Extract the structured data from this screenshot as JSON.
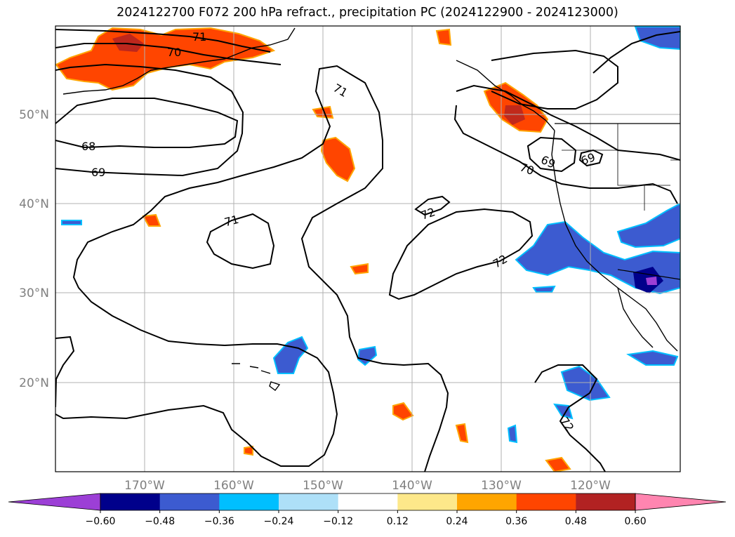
{
  "title": "2024122700 F072 200 hPa refract., precipitation PC (2024122900 - 2024123000)",
  "lat_labels": [
    "50°N",
    "40°N",
    "30°N",
    "20°N"
  ],
  "lon_labels": [
    "170°W",
    "160°W",
    "150°W",
    "140°W",
    "130°W",
    "120°W"
  ],
  "contour_labels": [
    "71",
    "70",
    "71",
    "68",
    "69",
    "71",
    "72",
    "70",
    "69",
    "69",
    "72",
    "72"
  ],
  "colorbar": {
    "colors": [
      "#9c3fd6",
      "#00008b",
      "#3c5bd0",
      "#00bfff",
      "#aee0f8",
      "#ffffff",
      "#fde88a",
      "#ffa500",
      "#ff4500",
      "#b22222",
      "#ff85b0"
    ],
    "tick_labels": [
      "−0.60",
      "−0.48",
      "−0.36",
      "−0.24",
      "−0.12",
      "0.12",
      "0.24",
      "0.36",
      "0.48",
      "0.60"
    ]
  }
}
